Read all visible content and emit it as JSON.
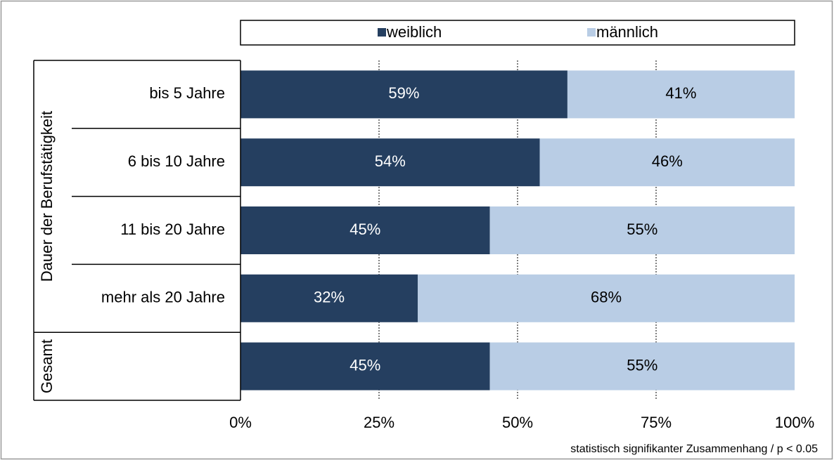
{
  "chart_data": {
    "type": "stacked_barh",
    "category_groups": [
      {
        "label": "Dauer der Berufstätigkeit",
        "categories": [
          "bis 5 Jahre",
          "6 bis 10 Jahre",
          "11 bis 20 Jahre",
          "mehr als 20 Jahre"
        ]
      },
      {
        "label": "Gesamt",
        "categories": [
          null
        ]
      }
    ],
    "series": [
      {
        "name": "weiblich",
        "color": "#253f60",
        "label_color": "#ffffff",
        "values": [
          59,
          54,
          45,
          32,
          45
        ],
        "value_labels": [
          "59%",
          "54%",
          "45%",
          "32%",
          "45%"
        ]
      },
      {
        "name": "männlich",
        "color": "#b9cde5",
        "label_color": "#000000",
        "values": [
          41,
          46,
          55,
          68,
          55
        ],
        "value_labels": [
          "41%",
          "46%",
          "55%",
          "68%",
          "55%"
        ]
      }
    ],
    "xlim": [
      0,
      100
    ],
    "xticks": [
      {
        "value": 0,
        "label": "0%"
      },
      {
        "value": 25,
        "label": "25%"
      },
      {
        "value": 50,
        "label": "50%"
      },
      {
        "value": 75,
        "label": "75%"
      },
      {
        "value": 100,
        "label": "100%"
      }
    ],
    "grid": true,
    "legend": "top",
    "note": "statistisch signifikanter Zusammenhang / p < 0.05"
  }
}
